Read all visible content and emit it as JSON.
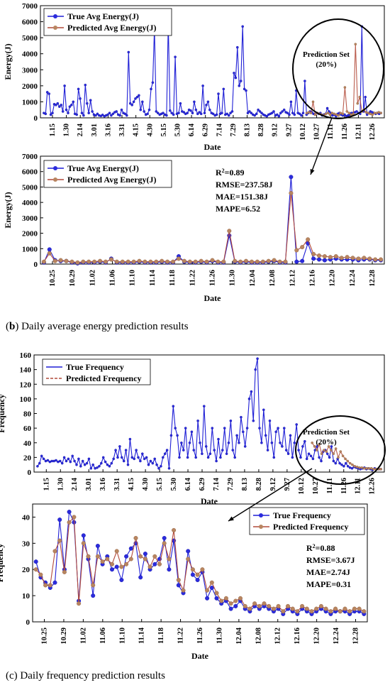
{
  "captions": {
    "b": "Daily average energy prediction results",
    "b_label": "b",
    "c": "Daily frequency prediction results",
    "c_label": "c"
  },
  "chart_data": [
    {
      "id": "energy-full",
      "type": "line",
      "xlabel": "Date",
      "ylabel": "Energy(J)",
      "ylim": [
        0,
        7000
      ],
      "yticks": [
        0,
        1000,
        2000,
        3000,
        4000,
        5000,
        6000,
        7000
      ],
      "x_tick_labels": [
        "1.15",
        "1.30",
        "2.14",
        "3.01",
        "3.16",
        "3.31",
        "4.15",
        "4.30",
        "5.15",
        "5.30",
        "6.14",
        "6.29",
        "7.14",
        "7.29",
        "8.13",
        "8.28",
        "9.12",
        "9.27",
        "10.12",
        "10.27",
        "11.11",
        "11.26",
        "12.11",
        "12.26"
      ],
      "annotation": "Prediction Set\n(20%)",
      "annotation_lines": [
        "Prediction Set",
        "(20%)"
      ],
      "legend": [
        "True Avg Energy(J)",
        "Predicted Avg Energy(J)"
      ],
      "series": [
        {
          "name": "True Avg Energy(J)",
          "color": "#1f1fd6",
          "values": [
            300,
            250,
            1600,
            1500,
            200,
            300,
            850,
            800,
            900,
            700,
            800,
            400,
            2000,
            500,
            300,
            700,
            800,
            1000,
            250,
            200,
            1800,
            1200,
            300,
            150,
            2050,
            900,
            300,
            1100,
            400,
            200,
            150,
            250,
            150,
            120,
            180,
            100,
            150,
            200,
            300,
            150,
            250,
            350,
            400,
            200,
            150,
            500,
            300,
            250,
            150,
            4100,
            900,
            800,
            1000,
            1200,
            1300,
            1400,
            500,
            1000,
            400,
            200,
            250,
            500,
            1800,
            2200,
            5600,
            400,
            300,
            200,
            250,
            300,
            200,
            150,
            5900,
            450,
            300,
            200,
            3800,
            250,
            300,
            900,
            400,
            350,
            250,
            300,
            500,
            450,
            300,
            1000,
            500,
            250,
            350,
            250,
            2000,
            300,
            800,
            1000,
            500,
            300,
            250,
            150,
            200,
            1500,
            250,
            300,
            1800,
            200,
            250,
            150,
            300,
            400,
            2800,
            2500,
            4400,
            2000,
            2300,
            5700,
            1800,
            1700,
            300,
            400,
            300,
            200,
            150,
            250,
            500,
            400,
            300,
            200,
            150,
            100,
            200,
            250,
            300,
            400,
            150,
            200,
            100,
            300,
            400,
            500,
            350,
            300,
            200,
            1000,
            300,
            200,
            1700,
            300,
            250,
            150,
            300,
            2300,
            200,
            300,
            400,
            350,
            250,
            200,
            300,
            250,
            300,
            150,
            200,
            250,
            600,
            400,
            300,
            150,
            200,
            100,
            250,
            300,
            200,
            150,
            200,
            100,
            150,
            200,
            300,
            300,
            350,
            400,
            300,
            250,
            5700,
            400,
            1300,
            200,
            300,
            400,
            350,
            300,
            250,
            300,
            250,
            300
          ]
        },
        {
          "name": "Predicted Avg Energy(J)",
          "color": "#b24a3a",
          "predict_start": 0.78,
          "values": [
            300,
            350,
            300,
            1000,
            200,
            300,
            250,
            200,
            150,
            250,
            300,
            200,
            300,
            250,
            200,
            150,
            300,
            250,
            1900,
            400,
            300,
            200,
            250,
            4600,
            900,
            1300,
            400,
            500,
            350,
            300,
            250,
            200,
            300,
            300,
            350,
            300
          ]
        }
      ]
    },
    {
      "id": "energy-zoom",
      "type": "line",
      "xlabel": "Date",
      "ylabel": "Energy(J)",
      "ylim": [
        0,
        7000
      ],
      "yticks": [
        0,
        1000,
        2000,
        3000,
        4000,
        5000,
        6000,
        7000
      ],
      "x_tick_labels": [
        "10.25",
        "10.29",
        "11.02",
        "11.06",
        "11.10",
        "11.14",
        "11.18",
        "11.22",
        "11.26",
        "11.30",
        "12.04",
        "12.08",
        "12.12",
        "12.16",
        "12.20",
        "12.24",
        "12.28"
      ],
      "legend": [
        "True Avg Energy(J)",
        "Predicted Avg Energy(J)"
      ],
      "metrics": [
        "RMSE=237.58J",
        "MAE=151.38J",
        "MAPE=6.52"
      ],
      "r2": "0.89",
      "series": [
        {
          "name": "True Avg Energy(J)",
          "color": "#1f1fd6",
          "values": [
            100,
            950,
            250,
            200,
            200,
            100,
            50,
            100,
            100,
            100,
            150,
            100,
            350,
            100,
            100,
            100,
            100,
            150,
            100,
            100,
            100,
            150,
            100,
            100,
            500,
            150,
            100,
            100,
            150,
            100,
            200,
            100,
            100,
            1850,
            150,
            100,
            150,
            100,
            100,
            100,
            150,
            200,
            100,
            100,
            5650,
            150,
            200,
            1350,
            350,
            300,
            250,
            300,
            350,
            300,
            300,
            300,
            250,
            300,
            300,
            250,
            250
          ]
        },
        {
          "name": "Predicted Avg Energy(J)",
          "color": "#b24a3a",
          "values": [
            150,
            700,
            200,
            250,
            200,
            150,
            100,
            150,
            150,
            150,
            200,
            150,
            300,
            150,
            150,
            150,
            150,
            200,
            150,
            150,
            150,
            200,
            150,
            150,
            350,
            200,
            150,
            150,
            200,
            150,
            250,
            150,
            150,
            2150,
            200,
            150,
            200,
            150,
            150,
            150,
            200,
            250,
            150,
            150,
            4600,
            900,
            1100,
            1600,
            650,
            550,
            500,
            450,
            500,
            400,
            450,
            400,
            350,
            400,
            350,
            300,
            300
          ]
        }
      ]
    },
    {
      "id": "freq-full",
      "type": "line",
      "xlabel": "Date",
      "ylabel": "Frequency",
      "ylim": [
        0,
        160
      ],
      "yticks": [
        0,
        20,
        40,
        60,
        80,
        100,
        120,
        140,
        160
      ],
      "x_tick_labels": [
        "1.15",
        "1.30",
        "2.14",
        "3.01",
        "3.16",
        "3.31",
        "4.15",
        "4.30",
        "5.15",
        "5.30",
        "6.14",
        "6.29",
        "7.14",
        "7.29",
        "8.13",
        "8.28",
        "9.12",
        "9.27",
        "10.12",
        "10.27",
        "11.11",
        "11.26",
        "12.11",
        "12.26"
      ],
      "annotation": "Prediction Set\n(20%)",
      "annotation_lines": [
        "Prediction Set",
        "(20%)"
      ],
      "legend": [
        "True Frequency",
        "Predicted Frequency"
      ],
      "series": [
        {
          "name": "True Frequency",
          "color": "#1f1fd6",
          "values": [
            8,
            12,
            22,
            18,
            15,
            16,
            14,
            15,
            15,
            16,
            14,
            15,
            12,
            20,
            15,
            18,
            14,
            22,
            15,
            10,
            18,
            8,
            15,
            10,
            12,
            18,
            5,
            10,
            5,
            6,
            8,
            12,
            20,
            14,
            10,
            8,
            12,
            18,
            30,
            20,
            35,
            20,
            15,
            30,
            10,
            45,
            20,
            18,
            30,
            20,
            15,
            25,
            18,
            20,
            10,
            15,
            12,
            18,
            10,
            5,
            8,
            20,
            25,
            30,
            5,
            50,
            90,
            60,
            50,
            20,
            40,
            30,
            60,
            20,
            40,
            55,
            30,
            20,
            70,
            40,
            25,
            90,
            35,
            20,
            25,
            60,
            30,
            15,
            45,
            20,
            30,
            60,
            25,
            40,
            70,
            30,
            20,
            50,
            40,
            75,
            55,
            35,
            60,
            100,
            110,
            70,
            140,
            155,
            60,
            40,
            85,
            50,
            30,
            70,
            40,
            20,
            55,
            60,
            40,
            35,
            60,
            30,
            25,
            50,
            20,
            40,
            65,
            30,
            20,
            35,
            42,
            18,
            25,
            22,
            18,
            30,
            35,
            20,
            15,
            28,
            30,
            25,
            20,
            35,
            15,
            12,
            18,
            12,
            10,
            8,
            12,
            8,
            6,
            5,
            7,
            6,
            5,
            4,
            5,
            6,
            4,
            5,
            4,
            3,
            5,
            4,
            4,
            4
          ]
        },
        {
          "name": "Predicted Frequency",
          "color": "#b24a3a",
          "predict_start": 0.8,
          "values": [
            40,
            35,
            30,
            38,
            25,
            30,
            28,
            35,
            30,
            25,
            32,
            20,
            28,
            22,
            18,
            15,
            12,
            10,
            8,
            7,
            6,
            6,
            5,
            5,
            5,
            5,
            4,
            4,
            4,
            4
          ]
        }
      ]
    },
    {
      "id": "freq-zoom",
      "type": "line",
      "xlabel": "Date",
      "ylabel": "Frequency",
      "ylim": [
        0,
        45
      ],
      "yticks": [
        0,
        10,
        20,
        30,
        40
      ],
      "x_tick_labels": [
        "10.25",
        "10.29",
        "11.02",
        "11.06",
        "11.10",
        "11.14",
        "11.18",
        "11.22",
        "11.26",
        "11.30",
        "12.04",
        "12.08",
        "12.12",
        "12.16",
        "12.20",
        "12.24",
        "12.28"
      ],
      "legend": [
        "True Frequency",
        "Predicted Frequency"
      ],
      "metrics": [
        "RMSE=3.67J",
        "MAE=2.74J",
        "MAPE=0.31"
      ],
      "r2": "0.88",
      "series": [
        {
          "name": "True Frequency",
          "color": "#1f1fd6",
          "values": [
            23,
            17,
            15,
            13,
            15,
            39,
            20,
            42,
            38,
            8,
            33,
            24,
            10,
            29,
            22,
            25,
            20,
            21,
            16,
            25,
            28,
            30,
            17,
            26,
            20,
            22,
            24,
            32,
            20,
            31,
            14,
            11,
            27,
            18,
            16,
            19,
            9,
            13,
            9,
            7,
            8,
            5,
            6,
            8,
            5,
            4,
            6,
            5,
            6,
            5,
            4,
            5,
            3,
            5,
            4,
            3,
            5,
            4,
            3,
            4,
            5,
            4,
            3,
            4,
            4,
            4,
            3,
            4,
            4,
            3
          ]
        },
        {
          "name": "Predicted Frequency",
          "color": "#b24a3a",
          "values": [
            20,
            18,
            14,
            14,
            27,
            31,
            19,
            38,
            40,
            7,
            30,
            25,
            14,
            25,
            23,
            24,
            22,
            27,
            21,
            22,
            24,
            32,
            25,
            24,
            21,
            25,
            22,
            30,
            24,
            35,
            16,
            12,
            24,
            20,
            18,
            20,
            12,
            15,
            11,
            8,
            9,
            7,
            8,
            9,
            6,
            5,
            7,
            6,
            7,
            6,
            5,
            6,
            4,
            6,
            5,
            4,
            6,
            5,
            4,
            5,
            6,
            5,
            4,
            5,
            4,
            5,
            4,
            5,
            5,
            4
          ]
        }
      ]
    }
  ]
}
